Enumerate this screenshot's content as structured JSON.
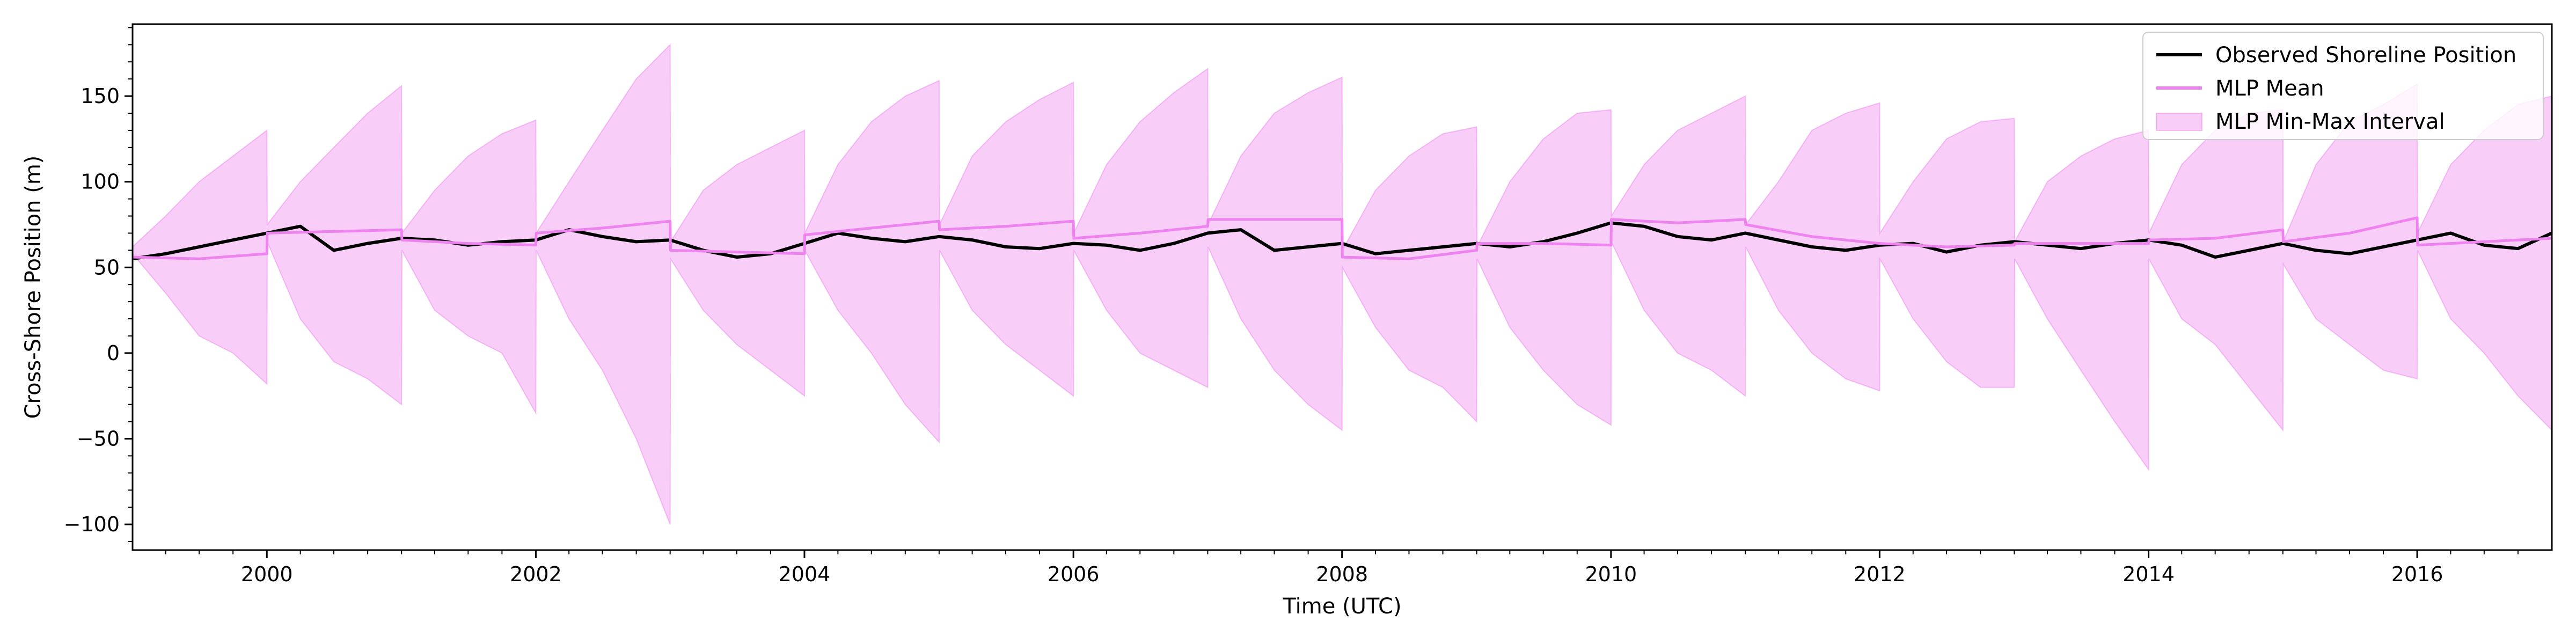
{
  "chart_data": {
    "type": "line",
    "title": "",
    "xlabel": "Time (UTC)",
    "ylabel": "Cross-Shore Position (m)",
    "xlim": [
      "1999-01-01",
      "2017-01-01"
    ],
    "ylim": [
      -115,
      192
    ],
    "x_ticks": [
      "2000",
      "2002",
      "2004",
      "2006",
      "2008",
      "2010",
      "2012",
      "2014",
      "2016"
    ],
    "y_ticks": [
      -100,
      -50,
      0,
      50,
      100,
      150
    ],
    "grid": false,
    "legend_position": "top-right",
    "legend": [
      {
        "label": "Observed Shoreline Position",
        "kind": "line",
        "color": "#000000"
      },
      {
        "label": "MLP Mean",
        "kind": "line",
        "color": "#ee82ee"
      },
      {
        "label": "MLP Min-Max Interval",
        "kind": "band",
        "color": "#ee82ee"
      }
    ],
    "series": [
      {
        "name": "Observed Shoreline Position",
        "style": "line",
        "color": "#000000",
        "x": [
          "1999-01-01",
          "1999-04-01",
          "1999-07-01",
          "1999-10-01",
          "2000-01-01",
          "2000-04-01",
          "2000-07-01",
          "2000-10-01",
          "2001-01-01",
          "2001-04-01",
          "2001-07-01",
          "2001-10-01",
          "2002-01-01",
          "2002-04-01",
          "2002-07-01",
          "2002-10-01",
          "2003-01-01",
          "2003-04-01",
          "2003-07-01",
          "2003-10-01",
          "2004-01-01",
          "2004-04-01",
          "2004-07-01",
          "2004-10-01",
          "2005-01-01",
          "2005-04-01",
          "2005-07-01",
          "2005-10-01",
          "2006-01-01",
          "2006-04-01",
          "2006-07-01",
          "2006-10-01",
          "2007-01-01",
          "2007-04-01",
          "2007-07-01",
          "2007-10-01",
          "2008-01-01",
          "2008-04-01",
          "2008-07-01",
          "2008-10-01",
          "2009-01-01",
          "2009-04-01",
          "2009-07-01",
          "2009-10-01",
          "2010-01-01",
          "2010-04-01",
          "2010-07-01",
          "2010-10-01",
          "2011-01-01",
          "2011-04-01",
          "2011-07-01",
          "2011-10-01",
          "2012-01-01",
          "2012-04-01",
          "2012-07-01",
          "2012-10-01",
          "2013-01-01",
          "2013-04-01",
          "2013-07-01",
          "2013-10-01",
          "2014-01-01",
          "2014-04-01",
          "2014-07-01",
          "2014-10-01",
          "2015-01-01",
          "2015-04-01",
          "2015-07-01",
          "2015-10-01",
          "2016-01-01",
          "2016-04-01",
          "2016-07-01",
          "2016-10-01",
          "2017-01-01"
        ],
        "values": [
          55,
          58,
          62,
          66,
          70,
          74,
          60,
          64,
          67,
          66,
          63,
          65,
          66,
          72,
          68,
          65,
          66,
          60,
          56,
          58,
          64,
          70,
          67,
          65,
          68,
          66,
          62,
          61,
          64,
          63,
          60,
          64,
          70,
          72,
          60,
          62,
          64,
          58,
          60,
          62,
          64,
          62,
          65,
          70,
          76,
          74,
          68,
          66,
          70,
          66,
          62,
          60,
          63,
          64,
          59,
          63,
          65,
          63,
          61,
          64,
          66,
          63,
          56,
          60,
          64,
          60,
          58,
          62,
          66,
          70,
          63,
          61,
          70
        ]
      },
      {
        "name": "MLP Mean",
        "style": "line",
        "color": "#ee82ee",
        "x": [
          "1999-01-01",
          "1999-07-01",
          "2000-01-01",
          "2000-01-02",
          "2000-07-01",
          "2001-01-01",
          "2001-01-02",
          "2001-07-01",
          "2002-01-01",
          "2002-01-02",
          "2002-07-01",
          "2003-01-01",
          "2003-01-02",
          "2003-07-01",
          "2004-01-01",
          "2004-01-02",
          "2004-07-01",
          "2005-01-01",
          "2005-01-02",
          "2005-07-01",
          "2006-01-01",
          "2006-01-02",
          "2006-07-01",
          "2007-01-01",
          "2007-01-02",
          "2007-07-01",
          "2008-01-01",
          "2008-01-02",
          "2008-07-01",
          "2009-01-01",
          "2009-01-02",
          "2009-07-01",
          "2010-01-01",
          "2010-01-02",
          "2010-07-01",
          "2011-01-01",
          "2011-01-02",
          "2011-07-01",
          "2012-01-01",
          "2012-01-02",
          "2012-07-01",
          "2013-01-01",
          "2013-01-02",
          "2013-07-01",
          "2014-01-01",
          "2014-01-02",
          "2014-07-01",
          "2015-01-01",
          "2015-01-02",
          "2015-07-01",
          "2016-01-01",
          "2016-01-02",
          "2016-07-01",
          "2017-01-01"
        ],
        "values": [
          56,
          55,
          58,
          70,
          71,
          72,
          66,
          64,
          63,
          70,
          73,
          77,
          60,
          59,
          58,
          69,
          73,
          77,
          72,
          74,
          77,
          67,
          70,
          74,
          78,
          78,
          78,
          56,
          55,
          60,
          64,
          64,
          63,
          78,
          76,
          78,
          75,
          68,
          64,
          64,
          62,
          63,
          64,
          64,
          64,
          66,
          67,
          72,
          65,
          70,
          79,
          63,
          65,
          67
        ]
      },
      {
        "name": "MLP Min-Max Interval",
        "style": "band",
        "color": "#ee82ee",
        "x": [
          "1999-01-01",
          "1999-04-01",
          "1999-07-01",
          "1999-10-01",
          "2000-01-01",
          "2000-01-02",
          "2000-04-01",
          "2000-07-01",
          "2000-10-01",
          "2001-01-01",
          "2001-01-02",
          "2001-04-01",
          "2001-07-01",
          "2001-10-01",
          "2002-01-01",
          "2002-01-02",
          "2002-04-01",
          "2002-07-01",
          "2002-10-01",
          "2003-01-01",
          "2003-01-02",
          "2003-04-01",
          "2003-07-01",
          "2003-10-01",
          "2004-01-01",
          "2004-01-02",
          "2004-04-01",
          "2004-07-01",
          "2004-10-01",
          "2005-01-01",
          "2005-01-02",
          "2005-04-01",
          "2005-07-01",
          "2005-10-01",
          "2006-01-01",
          "2006-01-02",
          "2006-04-01",
          "2006-07-01",
          "2006-10-01",
          "2007-01-01",
          "2007-01-02",
          "2007-04-01",
          "2007-07-01",
          "2007-10-01",
          "2008-01-01",
          "2008-01-02",
          "2008-04-01",
          "2008-07-01",
          "2008-10-01",
          "2009-01-01",
          "2009-01-02",
          "2009-04-01",
          "2009-07-01",
          "2009-10-01",
          "2010-01-01",
          "2010-01-02",
          "2010-04-01",
          "2010-07-01",
          "2010-10-01",
          "2011-01-01",
          "2011-01-02",
          "2011-04-01",
          "2011-07-01",
          "2011-10-01",
          "2012-01-01",
          "2012-01-02",
          "2012-04-01",
          "2012-07-01",
          "2012-10-01",
          "2013-01-01",
          "2013-01-02",
          "2013-04-01",
          "2013-07-01",
          "2013-10-01",
          "2014-01-01",
          "2014-01-02",
          "2014-04-01",
          "2014-07-01",
          "2014-10-01",
          "2015-01-01",
          "2015-01-02",
          "2015-04-01",
          "2015-07-01",
          "2015-10-01",
          "2016-01-01",
          "2016-01-02",
          "2016-04-01",
          "2016-07-01",
          "2016-10-01",
          "2017-01-01"
        ],
        "upper": [
          62,
          80,
          100,
          115,
          130,
          75,
          100,
          120,
          140,
          156,
          70,
          95,
          115,
          128,
          136,
          70,
          100,
          130,
          160,
          180,
          65,
          95,
          110,
          120,
          130,
          70,
          110,
          135,
          150,
          159,
          75,
          115,
          135,
          148,
          158,
          70,
          110,
          135,
          152,
          166,
          75,
          115,
          140,
          152,
          161,
          60,
          95,
          115,
          128,
          132,
          62,
          100,
          125,
          140,
          142,
          80,
          110,
          130,
          140,
          150,
          75,
          100,
          130,
          140,
          146,
          70,
          100,
          125,
          135,
          137,
          65,
          100,
          115,
          125,
          130,
          70,
          110,
          130,
          140,
          142,
          65,
          110,
          135,
          145,
          157,
          70,
          110,
          130,
          145,
          150
        ],
        "lower": [
          58,
          35,
          10,
          0,
          -18,
          65,
          20,
          -5,
          -15,
          -30,
          60,
          25,
          10,
          0,
          -35,
          60,
          20,
          -10,
          -50,
          -100,
          55,
          25,
          5,
          -10,
          -25,
          60,
          25,
          0,
          -30,
          -52,
          60,
          25,
          5,
          -10,
          -25,
          60,
          25,
          0,
          -10,
          -20,
          62,
          20,
          -10,
          -30,
          -45,
          50,
          15,
          -10,
          -20,
          -40,
          55,
          15,
          -10,
          -30,
          -42,
          65,
          25,
          0,
          -10,
          -25,
          62,
          25,
          0,
          -15,
          -22,
          55,
          20,
          -5,
          -20,
          -20,
          55,
          20,
          -10,
          -40,
          -68,
          55,
          20,
          5,
          -20,
          -45,
          52,
          20,
          5,
          -10,
          -15,
          60,
          20,
          0,
          -25,
          -45
        ]
      }
    ]
  }
}
